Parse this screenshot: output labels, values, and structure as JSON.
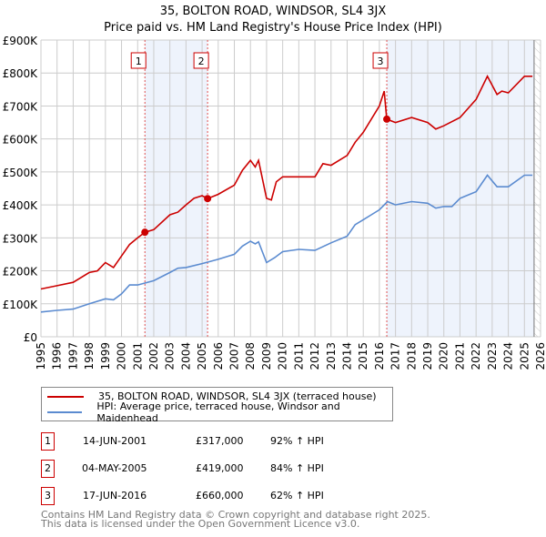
{
  "title_line1": "35, BOLTON ROAD, WINDSOR, SL4 3JX",
  "title_line2": "Price paid vs. HM Land Registry's House Price Index (HPI)",
  "chart_data": {
    "type": "line",
    "title": "35, BOLTON ROAD, WINDSOR, SL4 3JX — Price paid vs. HM Land Registry's House Price Index (HPI)",
    "xlim": [
      1995,
      2026
    ],
    "ylim": [
      0,
      900000
    ],
    "y_ticks": [
      {
        "v": 0,
        "label": "£0"
      },
      {
        "v": 100000,
        "label": "£100K"
      },
      {
        "v": 200000,
        "label": "£200K"
      },
      {
        "v": 300000,
        "label": "£300K"
      },
      {
        "v": 400000,
        "label": "£400K"
      },
      {
        "v": 500000,
        "label": "£500K"
      },
      {
        "v": 600000,
        "label": "£600K"
      },
      {
        "v": 700000,
        "label": "£700K"
      },
      {
        "v": 800000,
        "label": "£800K"
      },
      {
        "v": 900000,
        "label": "£900K"
      }
    ],
    "x_ticks": [
      "1995",
      "1996",
      "1997",
      "1998",
      "1999",
      "2000",
      "2001",
      "2002",
      "2003",
      "2004",
      "2005",
      "2006",
      "2007",
      "2008",
      "2009",
      "2010",
      "2011",
      "2012",
      "2013",
      "2014",
      "2015",
      "2016",
      "2017",
      "2018",
      "2019",
      "2020",
      "2021",
      "2022",
      "2023",
      "2024",
      "2025",
      "2026"
    ],
    "grid": true,
    "series": [
      {
        "name": "35, BOLTON ROAD, WINDSOR, SL4 3JX (terraced house)",
        "color": "#cc0000",
        "x": [
          1995,
          1996,
          1997,
          1998,
          1998.5,
          1999,
          1999.5,
          2000,
          2000.5,
          2001,
          2001.45,
          2002,
          2003,
          2003.5,
          2004,
          2004.5,
          2005,
          2005.34,
          2006,
          2007,
          2007.5,
          2008,
          2008.3,
          2008.5,
          2009,
          2009.3,
          2009.6,
          2010,
          2011,
          2012,
          2012.5,
          2013,
          2014,
          2014.5,
          2015,
          2016,
          2016.3,
          2016.46,
          2017,
          2018,
          2019,
          2019.5,
          2020,
          2021,
          2022,
          2022.7,
          2023.3,
          2023.6,
          2024,
          2025,
          2025.5
        ],
        "y": [
          145000,
          155000,
          165000,
          195000,
          200000,
          225000,
          210000,
          245000,
          280000,
          300000,
          317000,
          325000,
          370000,
          378000,
          400000,
          420000,
          428000,
          419000,
          432000,
          460000,
          505000,
          535000,
          515000,
          535000,
          420000,
          415000,
          470000,
          485000,
          485000,
          485000,
          525000,
          520000,
          550000,
          590000,
          620000,
          700000,
          745000,
          660000,
          650000,
          665000,
          650000,
          630000,
          640000,
          665000,
          720000,
          790000,
          735000,
          745000,
          740000,
          790000,
          790000
        ]
      },
      {
        "name": "HPI: Average price, terraced house, Windsor and Maidenhead",
        "color": "#5b8bd0",
        "x": [
          1995,
          1996,
          1997,
          1998,
          1999,
          1999.5,
          2000,
          2000.5,
          2001,
          2002,
          2003,
          2003.5,
          2004,
          2005,
          2006,
          2007,
          2007.5,
          2008,
          2008.3,
          2008.5,
          2009,
          2009.5,
          2010,
          2011,
          2012,
          2013,
          2014,
          2014.5,
          2015,
          2015.5,
          2016,
          2016.5,
          2017,
          2018,
          2019,
          2019.5,
          2020,
          2020.5,
          2021,
          2022,
          2022.7,
          2023.3,
          2024,
          2025,
          2025.5
        ],
        "y": [
          75000,
          80000,
          84000,
          100000,
          115000,
          112000,
          130000,
          157000,
          157000,
          170000,
          195000,
          208000,
          210000,
          222000,
          235000,
          250000,
          275000,
          290000,
          282000,
          288000,
          225000,
          240000,
          258000,
          265000,
          262000,
          285000,
          305000,
          340000,
          355000,
          370000,
          385000,
          410000,
          400000,
          410000,
          405000,
          390000,
          395000,
          395000,
          420000,
          440000,
          490000,
          455000,
          455000,
          490000,
          490000
        ]
      }
    ],
    "sales": [
      {
        "n": "1",
        "x": 2001.45,
        "y": 317000,
        "date": "14-JUN-2001",
        "price": "£317,000",
        "hpi": "92% ↑ HPI"
      },
      {
        "n": "2",
        "x": 2005.34,
        "y": 419000,
        "date": "04-MAY-2005",
        "price": "£419,000",
        "hpi": "84% ↑ HPI"
      },
      {
        "n": "3",
        "x": 2016.46,
        "y": 660000,
        "date": "17-JUN-2016",
        "price": "£660,000",
        "hpi": "62% ↑ HPI"
      }
    ],
    "data_end": 2025.6
  },
  "footer_line1": "Contains HM Land Registry data © Crown copyright and database right 2025.",
  "footer_line2": "This data is licensed under the Open Government Licence v3.0."
}
